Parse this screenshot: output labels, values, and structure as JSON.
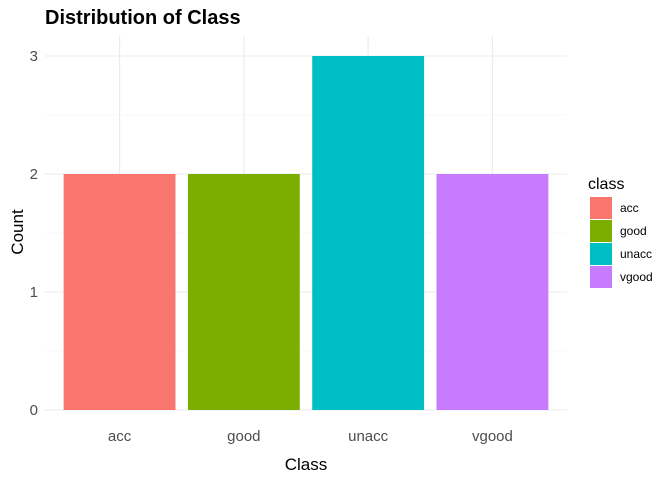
{
  "chart_data": {
    "type": "bar",
    "title": "Distribution of Class",
    "xlabel": "Class",
    "ylabel": "Count",
    "categories": [
      "acc",
      "good",
      "unacc",
      "vgood"
    ],
    "values": [
      2,
      2,
      3,
      2
    ],
    "colors": [
      "#F8766D",
      "#7CAE00",
      "#00BFC4",
      "#C77CFF"
    ],
    "ylim": [
      0,
      3
    ],
    "yticks": [
      0,
      1,
      2,
      3
    ],
    "grid": true,
    "legend": {
      "title": "class",
      "placement": "right",
      "entries": [
        "acc",
        "good",
        "unacc",
        "vgood"
      ]
    }
  }
}
